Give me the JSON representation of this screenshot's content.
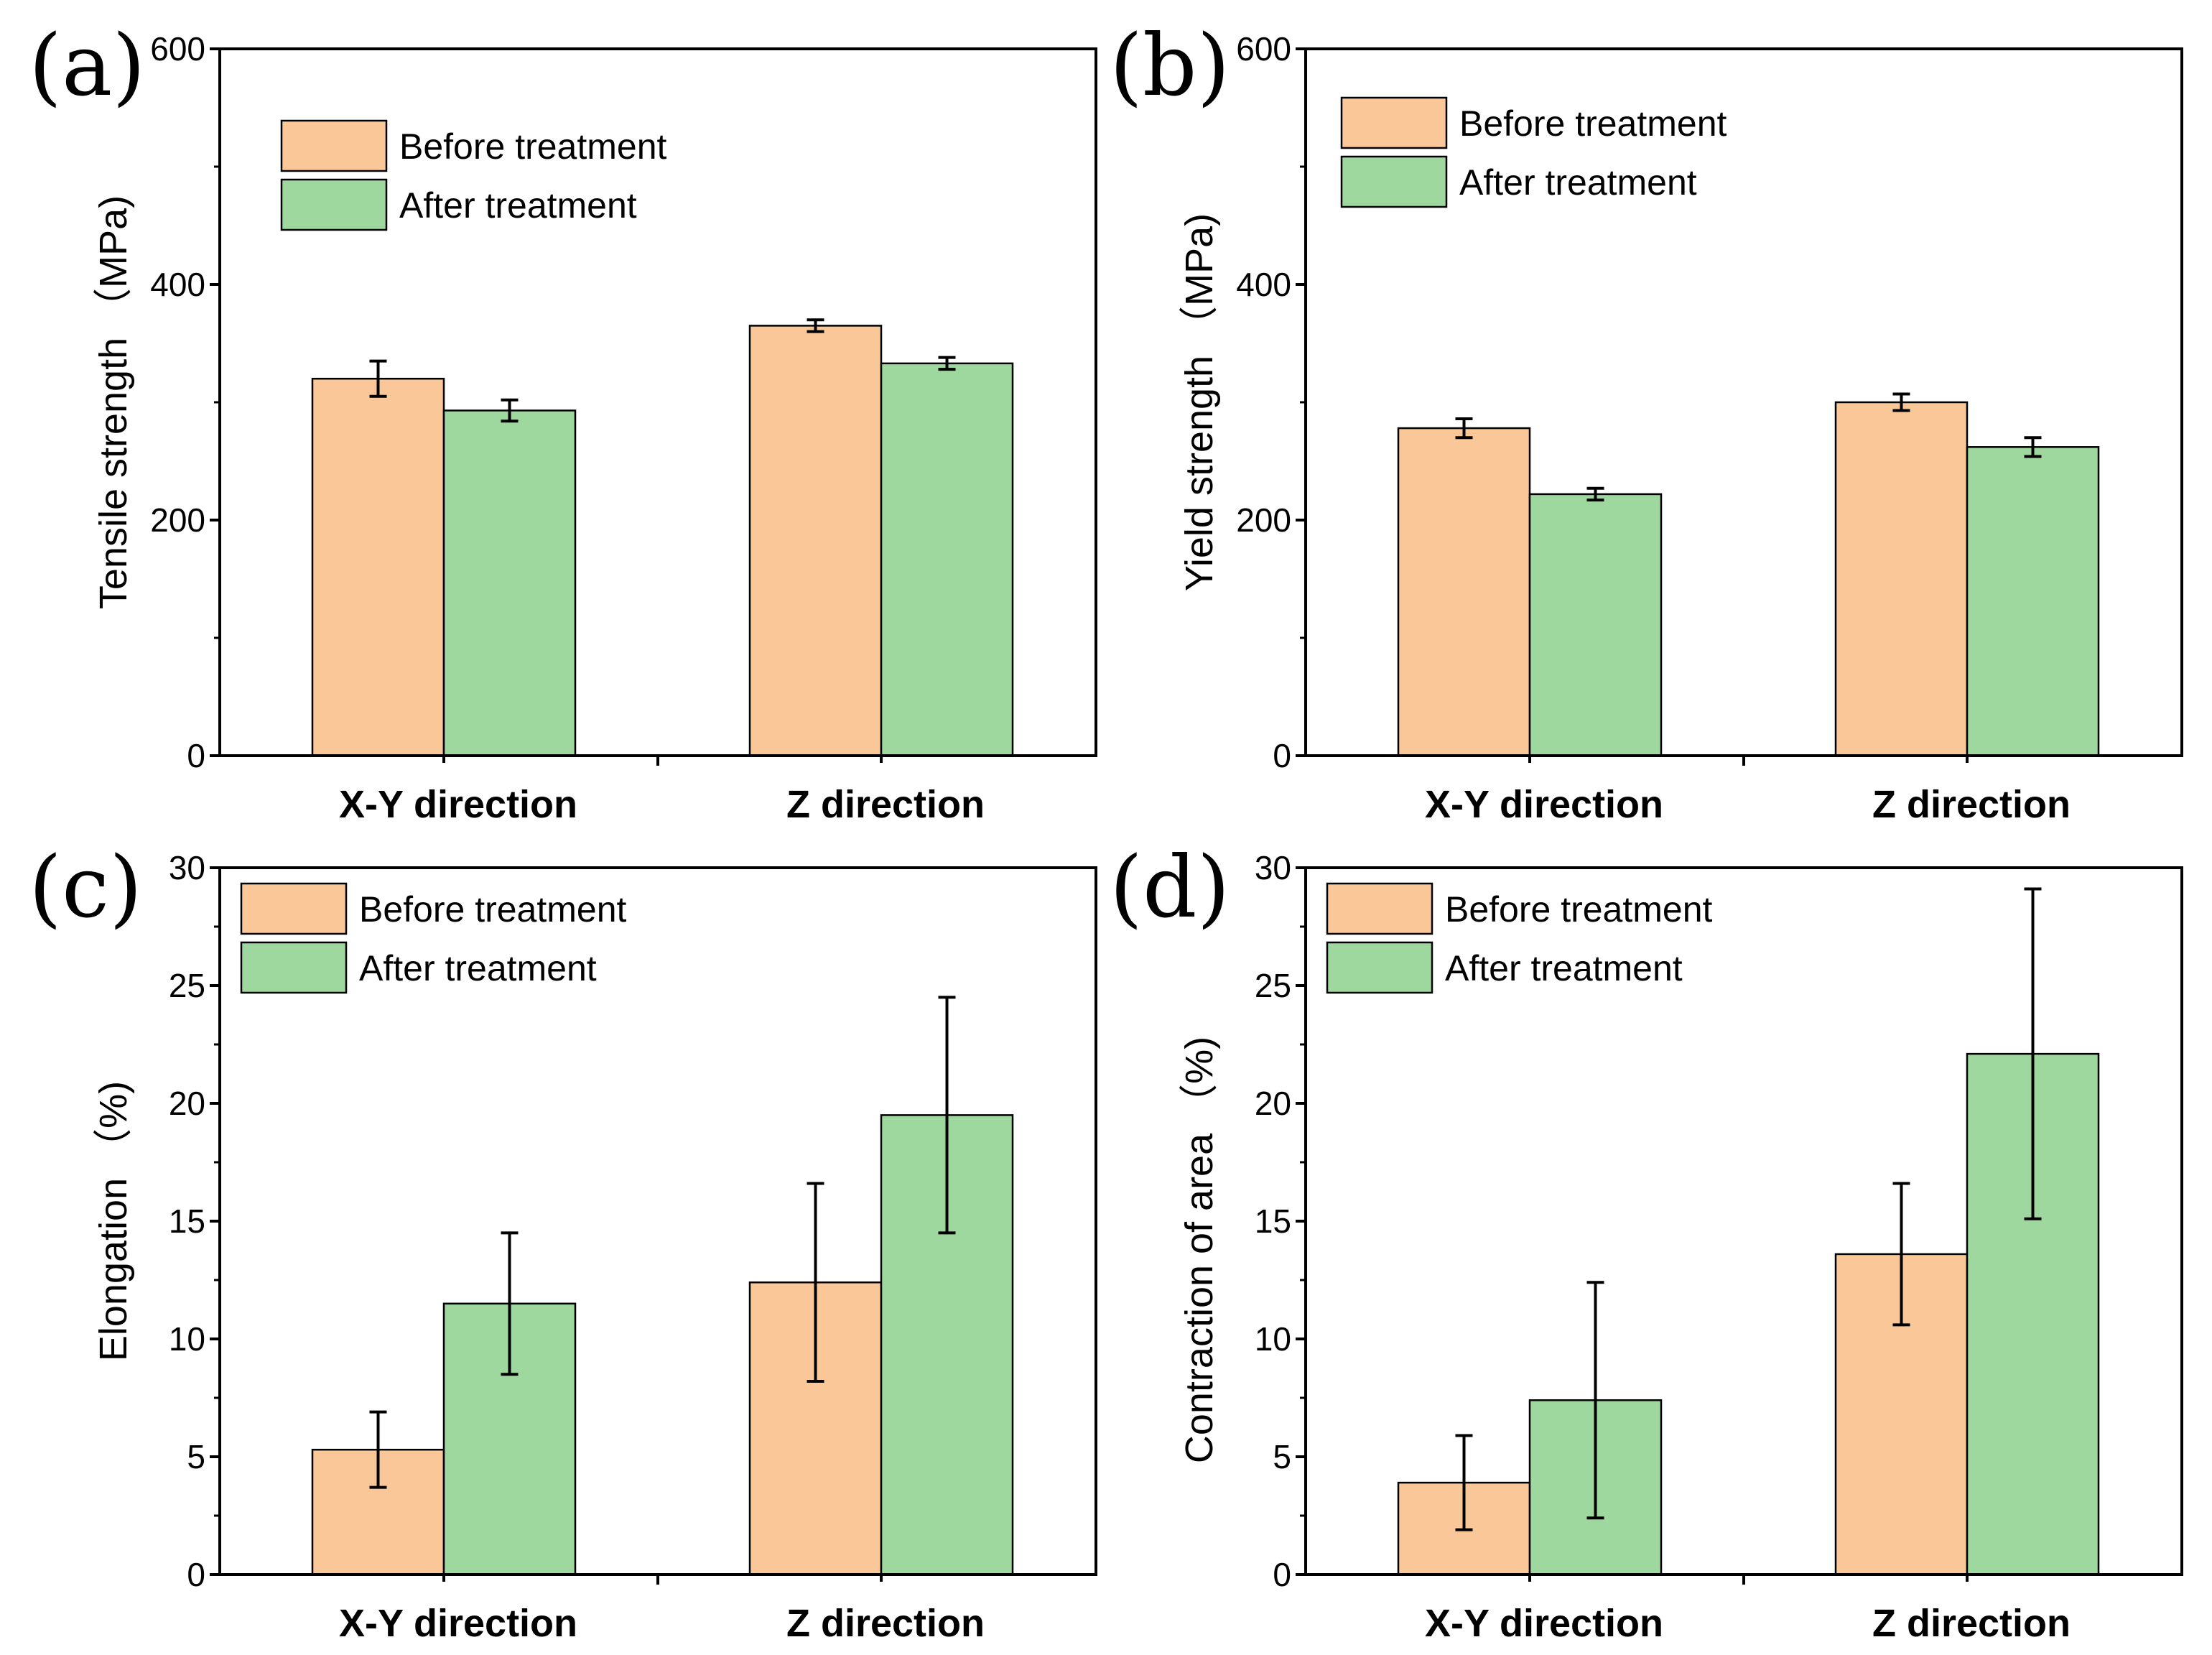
{
  "colors": {
    "before": "#fac898",
    "after": "#9ed89e",
    "axis": "#000000"
  },
  "chart_data": [
    {
      "panel": "(a)",
      "type": "bar",
      "categories": [
        "X-Y direction",
        "Z direction"
      ],
      "series": [
        {
          "name": "Before treatment",
          "values": [
            320,
            365
          ],
          "errors": [
            15,
            5
          ]
        },
        {
          "name": "After treatment",
          "values": [
            293,
            333
          ],
          "errors": [
            9,
            5
          ]
        }
      ],
      "xlabel": "",
      "ylabel": "Tensile strength （MPa)",
      "ylim": [
        0,
        600
      ],
      "yticks": [
        0,
        200,
        400,
        600
      ],
      "legend": "top-left"
    },
    {
      "panel": "(b)",
      "type": "bar",
      "categories": [
        "X-Y direction",
        "Z direction"
      ],
      "series": [
        {
          "name": "Before treatment",
          "values": [
            278,
            300
          ],
          "errors": [
            8,
            7
          ]
        },
        {
          "name": "After treatment",
          "values": [
            222,
            262
          ],
          "errors": [
            5,
            8
          ]
        }
      ],
      "xlabel": "",
      "ylabel": "Yield strength （MPa)",
      "ylim": [
        0,
        600
      ],
      "yticks": [
        0,
        200,
        400,
        600
      ],
      "legend": "top-left"
    },
    {
      "panel": "(c)",
      "type": "bar",
      "categories": [
        "X-Y direction",
        "Z direction"
      ],
      "series": [
        {
          "name": "Before treatment",
          "values": [
            5.3,
            12.4
          ],
          "errors": [
            1.6,
            4.2
          ]
        },
        {
          "name": "After treatment",
          "values": [
            11.5,
            19.5
          ],
          "errors": [
            3.0,
            5.0
          ]
        }
      ],
      "xlabel": "",
      "ylabel": "Elongation （%)",
      "ylim": [
        0,
        30
      ],
      "yticks": [
        0,
        5,
        10,
        15,
        20,
        25,
        30
      ],
      "legend": "top-left"
    },
    {
      "panel": "(d)",
      "type": "bar",
      "categories": [
        "X-Y direction",
        "Z direction"
      ],
      "series": [
        {
          "name": "Before treatment",
          "values": [
            3.9,
            13.6
          ],
          "errors": [
            2.0,
            3.0
          ]
        },
        {
          "name": "After treatment",
          "values": [
            7.4,
            22.1
          ],
          "errors": [
            5.0,
            7.0
          ]
        }
      ],
      "xlabel": "",
      "ylabel": "Contraction of area （%)",
      "ylim": [
        0,
        30
      ],
      "yticks": [
        0,
        5,
        10,
        15,
        20,
        25,
        30
      ],
      "legend": "top-left"
    }
  ]
}
